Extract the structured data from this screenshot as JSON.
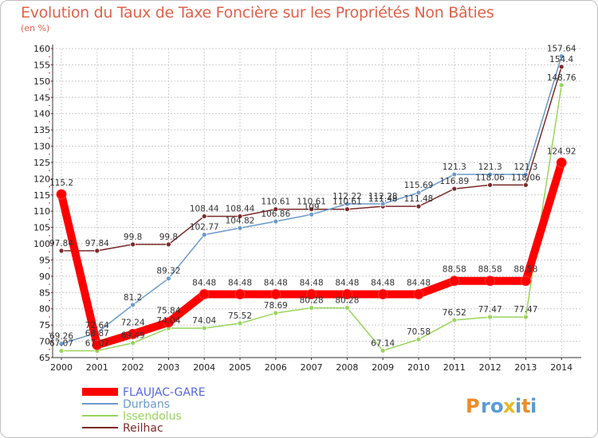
{
  "chart_data": {
    "type": "line",
    "title": "Evolution du Taux de Taxe Foncière sur les Propriétés Non Bâties",
    "ylabel": "(en %)",
    "xlabel": "",
    "ylim": [
      65,
      160
    ],
    "yticks": [
      "65",
      "70",
      "75",
      "80",
      "85",
      "90",
      "95",
      "100",
      "105",
      "110",
      "115",
      "120",
      "125",
      "130",
      "135",
      "140",
      "145",
      "150",
      "155",
      "160"
    ],
    "categories": [
      "2000",
      "2001",
      "2002",
      "2003",
      "2004",
      "2005",
      "2006",
      "2007",
      "2008",
      "2009",
      "2010",
      "2011",
      "2012",
      "2013",
      "2014"
    ],
    "series": [
      {
        "name": "Reilhac",
        "color": "#7b2a2a",
        "values": [
          97.84,
          97.84,
          99.8,
          99.8,
          108.44,
          108.44,
          110.61,
          110.61,
          110.61,
          111.48,
          111.48,
          116.89,
          118.06,
          118.06,
          154.4
        ],
        "labels": [
          "97.84",
          "97.84",
          "99.8",
          "99.8",
          "108.44",
          "108.44",
          "110.61",
          "110.61",
          "110.61",
          "111.48",
          "111.48",
          "116.89",
          "118.06",
          "118.06",
          "154.4"
        ]
      },
      {
        "name": "Durbans",
        "color": "#6b9ac9",
        "values": [
          69.26,
          72.64,
          81.2,
          89.32,
          102.77,
          104.82,
          106.86,
          109,
          112.22,
          112.28,
          115.69,
          121.3,
          121.3,
          121.3,
          157.64
        ],
        "labels": [
          "69.26",
          "72.64",
          "81.2",
          "89.32",
          "102.77",
          "104.82",
          "106.86",
          "109",
          "112.22",
          "112.28",
          "115.69",
          "121.3",
          "121.3",
          "121.3",
          "157.64"
        ]
      },
      {
        "name": "Issendolus",
        "color": "#99d45b",
        "values": [
          67.07,
          67.07,
          69.49,
          74.04,
          74.04,
          75.52,
          78.69,
          80.28,
          80.28,
          67.14,
          70.58,
          76.52,
          77.47,
          77.47,
          148.76
        ],
        "labels": [
          "67.07",
          "67.07",
          "69.49",
          "74.04",
          "74.04",
          "75.52",
          "78.69",
          "80.28",
          "80.28",
          "67.14",
          "70.58",
          "76.52",
          "77.47",
          "77.47",
          "148.76"
        ]
      },
      {
        "name": "FLAUJAC-GARE",
        "color": "#ff0000",
        "values": [
          115.2,
          68.87,
          72.24,
          75.84,
          84.48,
          84.48,
          84.48,
          84.48,
          84.48,
          84.48,
          84.48,
          88.58,
          88.58,
          88.58,
          124.92
        ],
        "labels": [
          "115.2",
          "68.87",
          "72.24",
          "75.84",
          "84.48",
          "84.48",
          "84.48",
          "84.48",
          "84.48",
          "84.48",
          "84.48",
          "88.58",
          "88.58",
          "88.58",
          "124.92"
        ]
      }
    ],
    "legend": {
      "position": "bottom-left",
      "items": [
        {
          "name": "FLAUJAC-GARE",
          "color": "#ff0000",
          "text_color": "#5566dd"
        },
        {
          "name": "Durbans",
          "color": "#6b9ac9",
          "text_color": "#6b9ac9"
        },
        {
          "name": "Issendolus",
          "color": "#99d45b",
          "text_color": "#99d45b"
        },
        {
          "name": "Reilhac",
          "color": "#7b2a2a",
          "text_color": "#7b2a2a"
        }
      ]
    }
  },
  "logo": {
    "letters": [
      "P",
      "r",
      "o",
      "x",
      "i",
      "t",
      "i"
    ],
    "colors": [
      "#f08a24",
      "#5b9bd5",
      "#5b9bd5",
      "#e8b923",
      "#5b9bd5",
      "#f08a24",
      "#5b9bd5"
    ]
  }
}
